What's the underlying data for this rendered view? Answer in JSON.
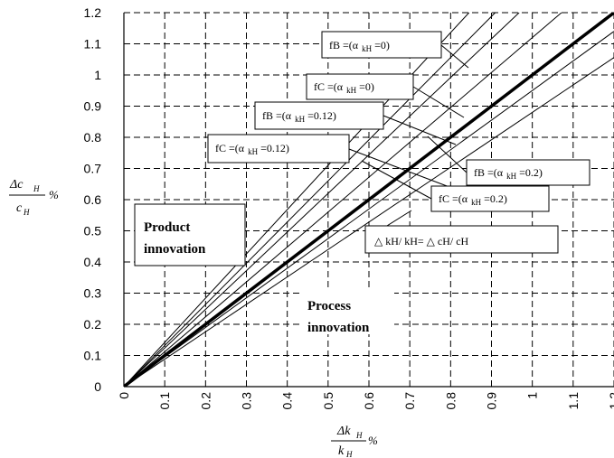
{
  "chart_data": {
    "type": "line",
    "title": "",
    "xlabel": {
      "main": "Δk",
      "sub": "H",
      "den": "k",
      "den_sub": "H",
      "unit": "%"
    },
    "ylabel": {
      "main": "Δc",
      "sub": "H",
      "den": "c",
      "den_sub": "H",
      "unit": "%"
    },
    "xlim": [
      0,
      1.2
    ],
    "ylim": [
      0,
      1.2
    ],
    "grid": true,
    "x_ticks": [
      "0",
      "0.1",
      "0.2",
      "0.3",
      "0.4",
      "0.5",
      "0.6",
      "0.7",
      "0.8",
      "0.9",
      "1",
      "1.1",
      "1.2"
    ],
    "y_ticks": [
      "0",
      "0.1",
      "0.2",
      "0.3",
      "0.4",
      "0.5",
      "0.6",
      "0.7",
      "0.8",
      "0.9",
      "1",
      "1.1",
      "1.2"
    ],
    "x_tick_values": [
      0,
      0.1,
      0.2,
      0.3,
      0.4,
      0.5,
      0.6,
      0.7,
      0.8,
      0.9,
      1,
      1.1,
      1.2
    ],
    "y_tick_values": [
      0,
      0.1,
      0.2,
      0.3,
      0.4,
      0.5,
      0.6,
      0.7,
      0.8,
      0.9,
      1,
      1.1,
      1.2
    ],
    "series": [
      {
        "name": "fB =(α kH =0)",
        "slope": 1.42,
        "weight": "thin"
      },
      {
        "name": "fC =(α kH =0)",
        "slope": 1.32,
        "weight": "thin"
      },
      {
        "name": "fB =(α kH =0.12)",
        "slope": 1.24,
        "weight": "thin"
      },
      {
        "name": "fC =(α kH =0.12)",
        "slope": 1.12,
        "weight": "thin"
      },
      {
        "name": "△ kH/ kH= △ cH/ cH",
        "slope": 1.0,
        "weight": "thick"
      },
      {
        "name": "fB =(α kH =0.2)",
        "slope": 0.95,
        "weight": "thin"
      },
      {
        "name": "fC =(α kH =0.2)",
        "slope": 0.88,
        "weight": "thin"
      }
    ],
    "labels": [
      {
        "prefix": "fB =(α",
        "sub": "kH",
        "suffix": "=0)"
      },
      {
        "prefix": "fC =(α",
        "sub": "kH",
        "suffix": "=0)"
      },
      {
        "prefix": "fB =(α",
        "sub": "kH",
        "suffix": "=0.12)"
      },
      {
        "prefix": "fC =(α",
        "sub": "kH",
        "suffix": "=0.12)"
      },
      {
        "prefix": "fB =(α",
        "sub": "kH",
        "suffix": "=0.2)"
      },
      {
        "prefix": "fC =(α",
        "sub": "kH",
        "suffix": "=0.2)"
      },
      {
        "prefix": "△ kH/ kH= △ cH/ cH",
        "sub": "",
        "suffix": ""
      }
    ],
    "regions": [
      {
        "line1": "Product",
        "line2": "innovation"
      },
      {
        "line1": "Process",
        "line2": "innovation"
      }
    ]
  }
}
